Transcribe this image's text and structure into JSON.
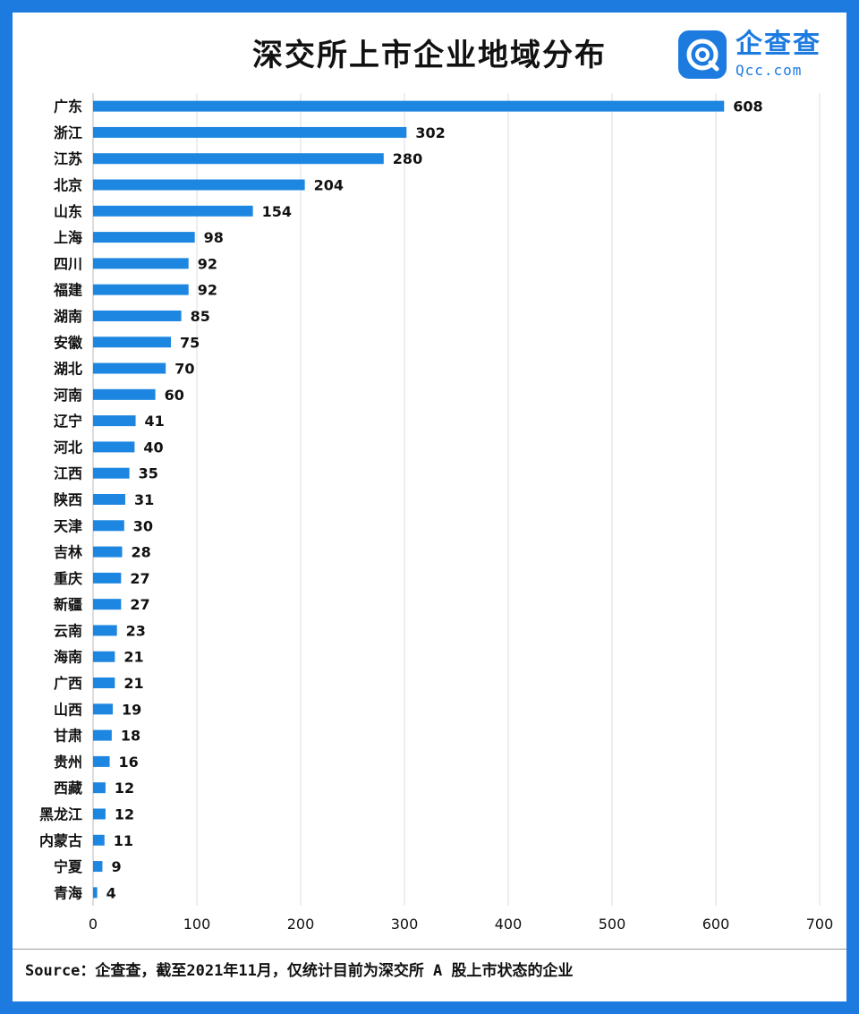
{
  "header": {
    "title": "深交所上市企业地域分布",
    "logo_cn": "企查查",
    "logo_en": "Qcc.com"
  },
  "footer": {
    "source": "Source：企查查，截至2021年11月，仅统计目前为深交所 A 股上市状态的企业"
  },
  "colors": {
    "bar": "#1d86e0",
    "frame": "#1d7be0"
  },
  "chart_data": {
    "type": "bar",
    "orientation": "horizontal",
    "title": "深交所上市企业地域分布",
    "categories": [
      "广东",
      "浙江",
      "江苏",
      "北京",
      "山东",
      "上海",
      "四川",
      "福建",
      "湖南",
      "安徽",
      "湖北",
      "河南",
      "辽宁",
      "河北",
      "江西",
      "陕西",
      "天津",
      "吉林",
      "重庆",
      "新疆",
      "云南",
      "海南",
      "广西",
      "山西",
      "甘肃",
      "贵州",
      "西藏",
      "黑龙江",
      "内蒙古",
      "宁夏",
      "青海"
    ],
    "values": [
      608,
      302,
      280,
      204,
      154,
      98,
      92,
      92,
      85,
      75,
      70,
      60,
      41,
      40,
      35,
      31,
      30,
      28,
      27,
      27,
      23,
      21,
      21,
      19,
      18,
      16,
      12,
      12,
      11,
      9,
      4
    ],
    "xlim": [
      0,
      700
    ],
    "xticks": [
      0,
      100,
      200,
      300,
      400,
      500,
      600,
      700
    ],
    "grid": true,
    "data_labels": true,
    "legend": "none"
  }
}
